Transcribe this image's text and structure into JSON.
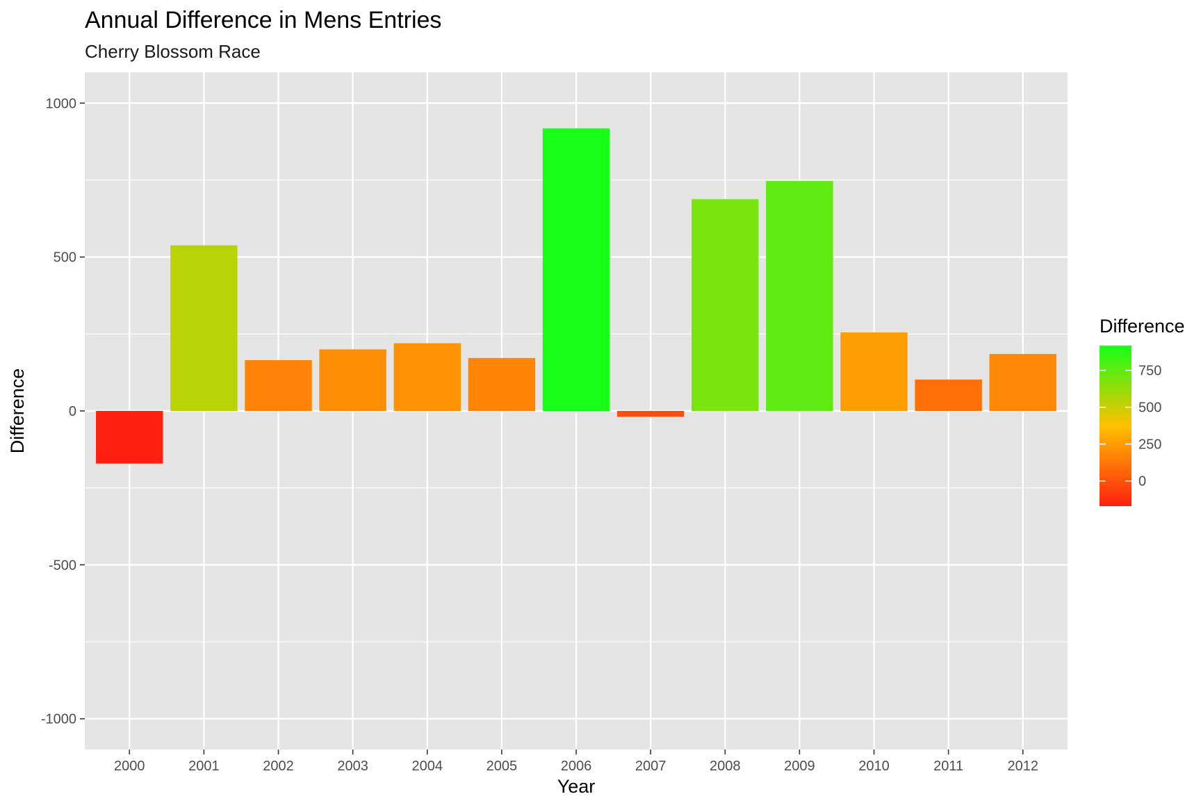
{
  "chart_data": {
    "type": "bar",
    "title": "Annual Difference in Mens Entries",
    "subtitle": "Cherry Blossom Race",
    "xlabel": "Year",
    "ylabel": "Difference",
    "categories": [
      "2000",
      "2001",
      "2002",
      "2003",
      "2004",
      "2005",
      "2006",
      "2007",
      "2008",
      "2009",
      "2010",
      "2011",
      "2012"
    ],
    "values": [
      -171,
      538,
      165,
      200,
      220,
      172,
      918,
      -19,
      688,
      747,
      255,
      102,
      185
    ],
    "ylim": [
      -1100,
      1100
    ],
    "yticks": [
      -1000,
      -500,
      0,
      500,
      1000
    ],
    "ytick_labels": [
      "-1000",
      "-500",
      "0",
      "500",
      "1000"
    ],
    "grid": true,
    "panel_background": "#e5e5e5",
    "grid_color": "#ffffff",
    "legend": {
      "title": "Difference",
      "placement": "right",
      "ticks": [
        0,
        250,
        500,
        750
      ],
      "tick_labels": [
        "0",
        "250",
        "500",
        "750"
      ],
      "range": [
        -171,
        918
      ],
      "color_low": "#ff2010",
      "color_mid": "#ffc000",
      "mid_value": 373,
      "color_high": "#18ff18"
    }
  }
}
